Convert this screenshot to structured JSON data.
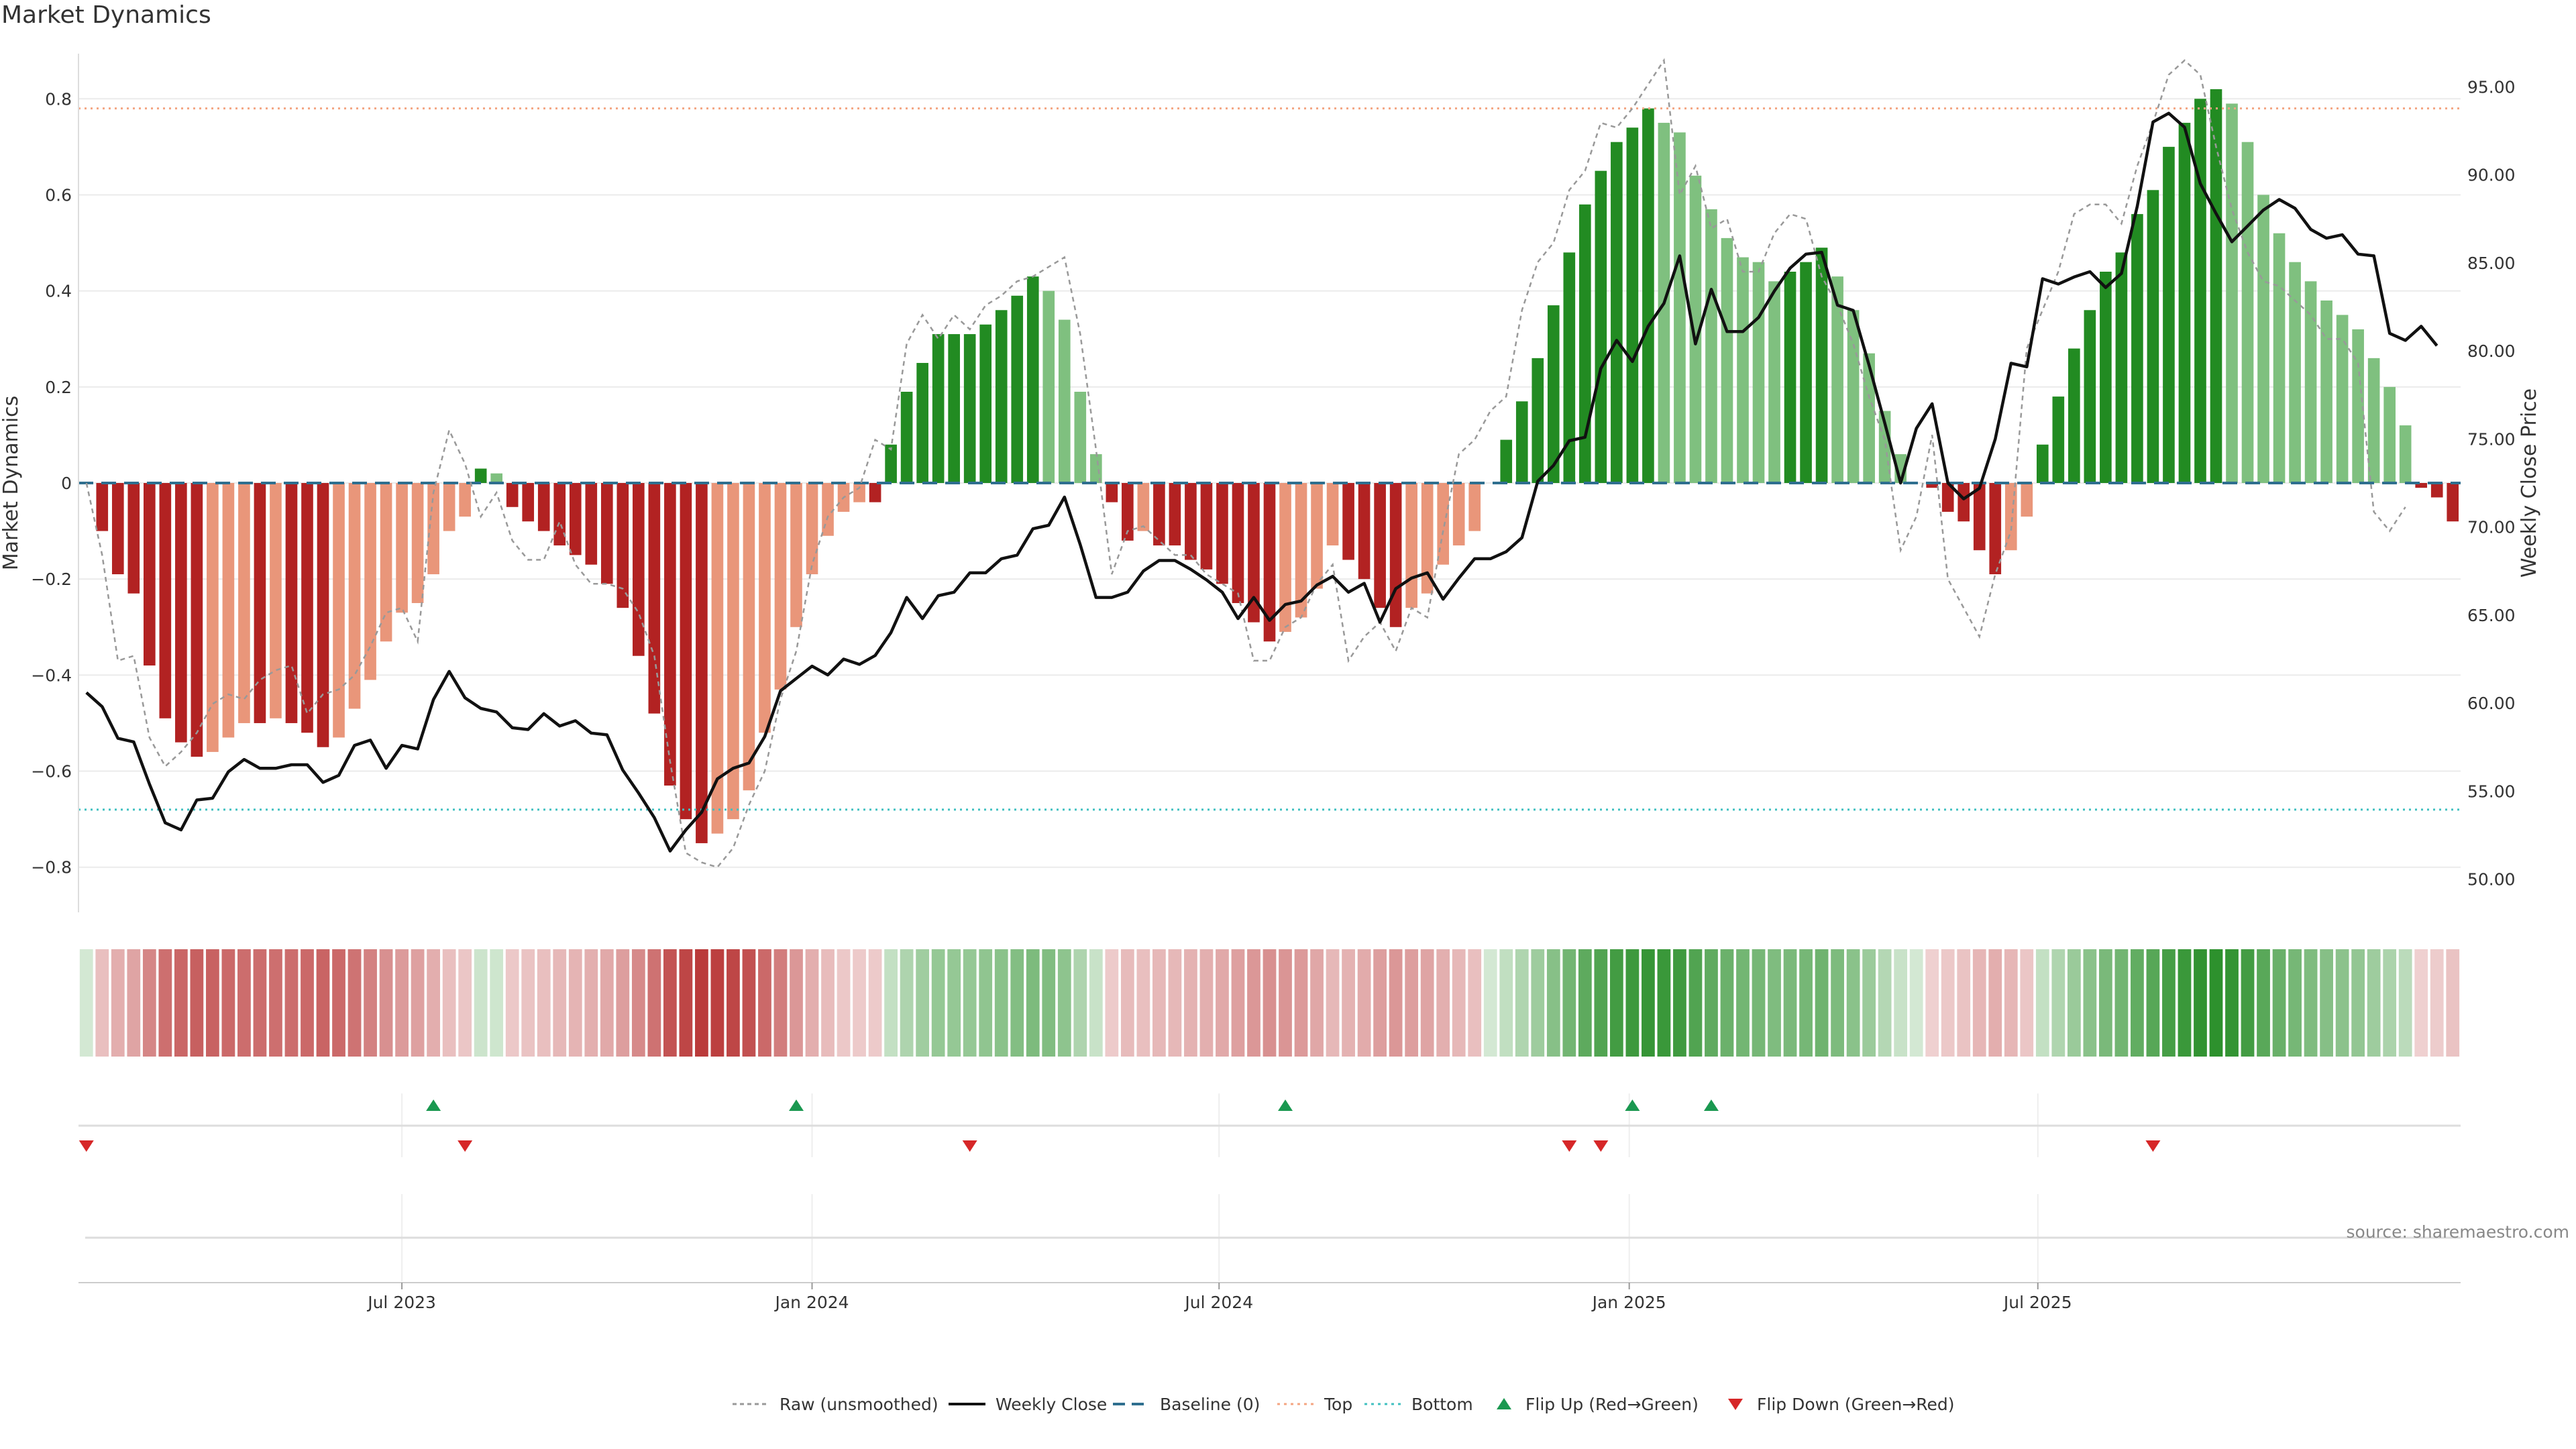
{
  "title": "Market Dynamics",
  "source": "source: sharemaestro.com",
  "colors": {
    "strong_red": "#b22222",
    "weak_red": "#e9967a",
    "strong_green": "#228b22",
    "weak_green": "#7fc07f",
    "raw_line": "#999999",
    "close_line": "#111111",
    "baseline": "#2f6f8f",
    "top_line": "#f4a582",
    "bottom_line": "#40c0c0",
    "flip_up": "#1a9850",
    "flip_down": "#d62728"
  },
  "chart_data": {
    "type": "bar",
    "left_axis": {
      "label": "Market Dynamics",
      "ylim": [
        -0.88,
        0.88
      ],
      "ticks": [
        "0.8",
        "0.6",
        "0.4",
        "0.2",
        "0",
        "−0.2",
        "−0.4",
        "−0.6",
        "−0.8"
      ]
    },
    "right_axis": {
      "label": "Weekly Close Price",
      "ylim": [
        48.5,
        96.5
      ],
      "ticks": [
        "95.00",
        "90.00",
        "85.00",
        "80.00",
        "75.00",
        "70.00",
        "65.00",
        "60.00",
        "55.00",
        "50.00"
      ]
    },
    "x_ticks": [
      "Jul 2023",
      "Jan 2024",
      "Jul 2024",
      "Jan 2025",
      "Jul 2025"
    ],
    "x_tick_positions": [
      20.5,
      46.5,
      72.3,
      98.3,
      124.2
    ],
    "reference_lines": {
      "top": 0.78,
      "bottom": -0.68,
      "baseline": 0
    },
    "series": [
      {
        "name": "Market Dynamics",
        "values": [
          0,
          -0.1,
          -0.19,
          -0.23,
          -0.38,
          -0.49,
          -0.54,
          -0.57,
          -0.56,
          -0.53,
          -0.5,
          -0.5,
          -0.49,
          -0.5,
          -0.52,
          -0.55,
          -0.53,
          -0.47,
          -0.41,
          -0.33,
          -0.27,
          -0.25,
          -0.19,
          -0.1,
          -0.07,
          0.03,
          0.02,
          -0.05,
          -0.08,
          -0.1,
          -0.13,
          -0.15,
          -0.17,
          -0.21,
          -0.26,
          -0.36,
          -0.48,
          -0.63,
          -0.7,
          -0.75,
          -0.73,
          -0.7,
          -0.64,
          -0.52,
          -0.43,
          -0.3,
          -0.19,
          -0.11,
          -0.06,
          -0.04,
          -0.04,
          0.08,
          0.19,
          0.25,
          0.31,
          0.31,
          0.31,
          0.33,
          0.36,
          0.39,
          0.43,
          0.4,
          0.34,
          0.19,
          0.06,
          -0.04,
          -0.12,
          -0.1,
          -0.13,
          -0.13,
          -0.16,
          -0.18,
          -0.21,
          -0.25,
          -0.29,
          -0.33,
          -0.31,
          -0.28,
          -0.22,
          -0.13,
          -0.16,
          -0.2,
          -0.26,
          -0.3,
          -0.26,
          -0.23,
          -0.17,
          -0.13,
          -0.1,
          0,
          0.09,
          0.17,
          0.26,
          0.37,
          0.48,
          0.58,
          0.65,
          0.71,
          0.74,
          0.78,
          0.75,
          0.73,
          0.64,
          0.57,
          0.51,
          0.47,
          0.46,
          0.42,
          0.44,
          0.46,
          0.49,
          0.43,
          0.36,
          0.27,
          0.15,
          0.06,
          0,
          -0.01,
          -0.06,
          -0.08,
          -0.14,
          -0.19,
          -0.14,
          -0.07,
          0.08,
          0.18,
          0.28,
          0.36,
          0.44,
          0.48,
          0.56,
          0.61,
          0.7,
          0.75,
          0.8,
          0.82,
          0.79,
          0.71,
          0.6,
          0.52,
          0.46,
          0.42,
          0.38,
          0.35,
          0.32,
          0.26,
          0.2,
          0.12,
          -0.01,
          -0.03,
          -0.08
        ]
      },
      {
        "name": "Raw (unsmoothed)",
        "values": [
          0,
          -0.15,
          -0.37,
          -0.36,
          -0.53,
          -0.59,
          -0.56,
          -0.52,
          -0.46,
          -0.44,
          -0.45,
          -0.41,
          -0.39,
          -0.38,
          -0.48,
          -0.44,
          -0.43,
          -0.4,
          -0.34,
          -0.27,
          -0.26,
          -0.33,
          -0.02,
          0.11,
          0.04,
          -0.07,
          -0.02,
          -0.12,
          -0.16,
          -0.16,
          -0.08,
          -0.17,
          -0.21,
          -0.21,
          -0.22,
          -0.27,
          -0.36,
          -0.58,
          -0.77,
          -0.79,
          -0.8,
          -0.76,
          -0.67,
          -0.6,
          -0.45,
          -0.35,
          -0.17,
          -0.07,
          -0.03,
          -0.01,
          0.09,
          0.07,
          0.29,
          0.35,
          0.3,
          0.35,
          0.32,
          0.37,
          0.39,
          0.42,
          0.43,
          0.45,
          0.47,
          0.31,
          0.07,
          -0.19,
          -0.1,
          -0.09,
          -0.12,
          -0.15,
          -0.15,
          -0.19,
          -0.21,
          -0.23,
          -0.37,
          -0.37,
          -0.3,
          -0.28,
          -0.21,
          -0.17,
          -0.37,
          -0.32,
          -0.29,
          -0.35,
          -0.26,
          -0.28,
          -0.1,
          0.06,
          0.09,
          0.15,
          0.18,
          0.36,
          0.46,
          0.5,
          0.61,
          0.65,
          0.75,
          0.74,
          0.78,
          0.83,
          0.88,
          0.6,
          0.66,
          0.53,
          0.55,
          0.44,
          0.44,
          0.52,
          0.56,
          0.55,
          0.43,
          0.37,
          0.29,
          0.18,
          0.09,
          -0.14,
          -0.07,
          0.1,
          -0.2,
          -0.26,
          -0.32,
          -0.19,
          -0.1,
          0.28,
          0.36,
          0.44,
          0.56,
          0.58,
          0.58,
          0.54,
          0.66,
          0.75,
          0.85,
          0.88,
          0.85,
          0.7,
          0.57,
          0.48,
          0.42,
          0.41,
          0.38,
          0.35,
          0.3,
          0.3,
          0.25,
          -0.06,
          -0.1,
          -0.05
        ]
      },
      {
        "name": "Weekly Close",
        "values": [
          60.6,
          59.8,
          58.0,
          57.8,
          55.4,
          53.2,
          52.8,
          54.5,
          54.6,
          56.1,
          56.8,
          56.3,
          56.3,
          56.5,
          56.5,
          55.5,
          55.9,
          57.6,
          57.9,
          56.3,
          57.6,
          57.4,
          60.2,
          61.8,
          60.3,
          59.7,
          59.5,
          58.6,
          58.5,
          59.4,
          58.7,
          59.0,
          58.3,
          58.2,
          56.2,
          54.9,
          53.5,
          51.6,
          52.8,
          53.8,
          55.7,
          56.3,
          56.6,
          58.1,
          60.7,
          61.4,
          62.1,
          61.6,
          62.5,
          62.2,
          62.7,
          64.0,
          66.0,
          64.8,
          66.1,
          66.3,
          67.4,
          67.4,
          68.2,
          68.4,
          69.9,
          70.1,
          71.7,
          69.0,
          66.0,
          66.0,
          66.3,
          67.5,
          68.1,
          68.1,
          67.6,
          67.0,
          66.3,
          64.8,
          66.0,
          64.7,
          65.6,
          65.8,
          66.7,
          67.2,
          66.3,
          66.8,
          64.6,
          66.5,
          67.1,
          67.4,
          65.9,
          67.1,
          68.2,
          68.2,
          68.6,
          69.4,
          72.6,
          73.5,
          74.9,
          75.1,
          79.0,
          80.6,
          79.4,
          81.4,
          82.7,
          85.4,
          80.4,
          83.5,
          81.1,
          81.1,
          81.9,
          83.4,
          84.7,
          85.5,
          85.6,
          82.6,
          82.3,
          79.2,
          75.9,
          72.5,
          75.6,
          77.0,
          72.5,
          71.6,
          72.2,
          75.0,
          79.3,
          79.1,
          84.1,
          83.8,
          84.2,
          84.5,
          83.6,
          84.4,
          88.2,
          93.0,
          93.5,
          92.7,
          89.5,
          87.8,
          86.2,
          87.1,
          88.0,
          88.6,
          88.1,
          86.9,
          86.4,
          86.6,
          85.5,
          85.4,
          81.0,
          80.6,
          81.4,
          80.3
        ]
      }
    ],
    "flip_up": [
      22,
      45,
      76,
      98,
      103
    ],
    "flip_down": [
      0,
      24,
      56,
      94,
      96,
      131
    ],
    "legend": [
      "Raw (unsmoothed)",
      "Weekly Close",
      "Baseline (0)",
      "Top",
      "Bottom",
      "Flip Up (Red→Green)",
      "Flip Down (Green→Red)"
    ],
    "legend_position": "bottom-center",
    "grid": true
  }
}
